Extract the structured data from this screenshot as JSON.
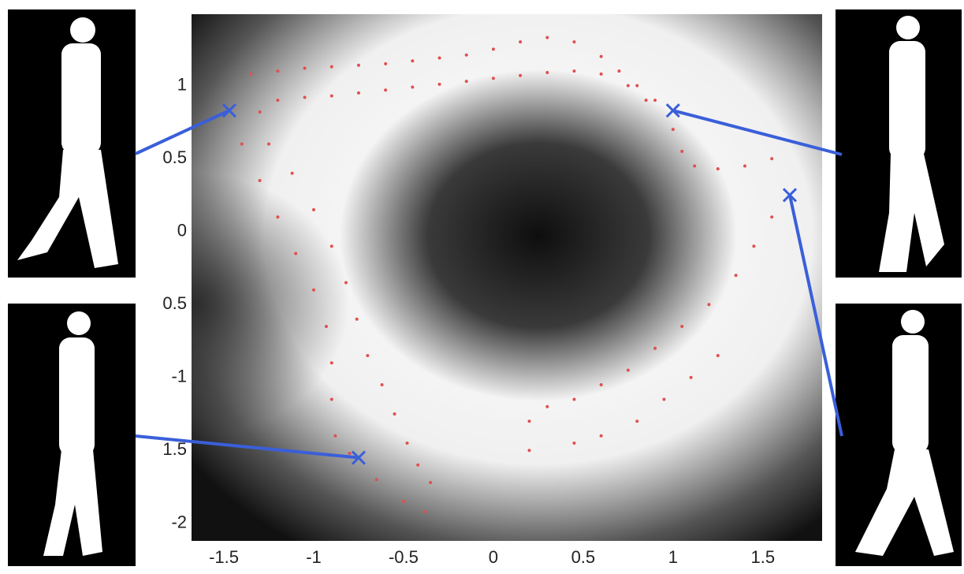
{
  "chart_data": {
    "type": "scatter",
    "xlim": [
      -1.68,
      1.83
    ],
    "ylim": [
      -2.12,
      1.49
    ],
    "xticks": [
      -1.5,
      -1,
      -0.5,
      0,
      0.5,
      1,
      1.5
    ],
    "yticks": [
      1,
      0.5,
      0,
      {
        "value": -0.5,
        "label": "0.5"
      },
      -1,
      {
        "value": -1.5,
        "label": "1.5"
      },
      -2
    ],
    "series": [
      {
        "color": "#e05050",
        "marker": "dot",
        "x": [
          -1.35,
          -1.2,
          -1.05,
          -0.9,
          -0.75,
          -0.6,
          -0.45,
          -0.3,
          -0.15,
          0,
          0.15,
          0.3,
          0.45,
          0.6,
          0.7,
          0.8,
          0.9,
          -1.3,
          -1.2,
          -1.05,
          -0.9,
          -0.75,
          -0.6,
          -0.45,
          -0.3,
          -0.15,
          0,
          0.15,
          0.3,
          0.45,
          0.6,
          0.75,
          0.85,
          -1.4,
          -1.3,
          -1.2,
          -1.1,
          -1.0,
          -0.93,
          -0.9,
          -0.9,
          -0.88,
          -0.8,
          -0.65,
          -0.5,
          -0.38,
          -1.25,
          -1.12,
          -1.0,
          -0.9,
          -0.82,
          -0.76,
          -0.7,
          -0.62,
          -0.55,
          -0.48,
          -0.42,
          -0.35,
          1.0,
          1.05,
          1.12,
          1.25,
          1.4,
          1.55,
          1.55,
          1.45,
          1.35,
          1.2,
          1.05,
          0.9,
          0.75,
          0.6,
          0.45,
          0.3,
          0.2,
          0.2,
          1.25,
          1.1,
          0.95,
          0.8,
          0.6,
          0.45
        ],
        "values": [
          1.08,
          1.1,
          1.12,
          1.13,
          1.14,
          1.15,
          1.17,
          1.19,
          1.21,
          1.25,
          1.3,
          1.33,
          1.3,
          1.2,
          1.1,
          1.0,
          0.9,
          0.82,
          0.9,
          0.92,
          0.93,
          0.95,
          0.97,
          0.99,
          1.01,
          1.03,
          1.05,
          1.07,
          1.09,
          1.1,
          1.08,
          1.0,
          0.9,
          0.6,
          0.35,
          0.1,
          -0.15,
          -0.4,
          -0.65,
          -0.9,
          -1.15,
          -1.4,
          -1.52,
          -1.7,
          -1.85,
          -1.92,
          0.6,
          0.4,
          0.15,
          -0.1,
          -0.35,
          -0.6,
          -0.85,
          -1.05,
          -1.25,
          -1.45,
          -1.6,
          -1.72,
          0.7,
          0.55,
          0.45,
          0.43,
          0.45,
          0.5,
          0.1,
          -0.1,
          -0.3,
          -0.5,
          -0.65,
          -0.8,
          -0.95,
          -1.05,
          -1.15,
          -1.2,
          -1.3,
          -1.5,
          -0.85,
          -1.0,
          -1.15,
          -1.3,
          -1.4,
          -1.45
        ]
      },
      {
        "color": "#3a5fd9",
        "marker": "cross",
        "x": [
          -1.47,
          1.0,
          1.65,
          -0.75
        ],
        "values": [
          0.83,
          0.83,
          0.25,
          -1.55
        ]
      }
    ]
  }
}
